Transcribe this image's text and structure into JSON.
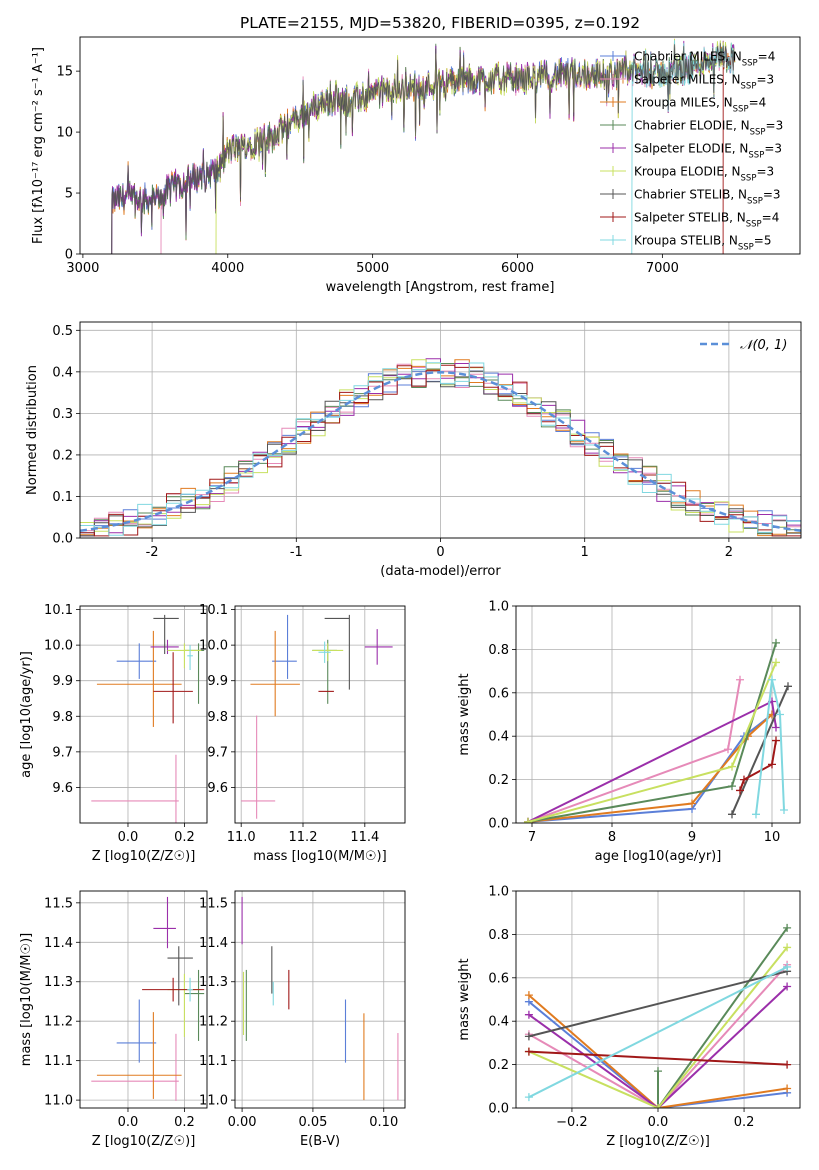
{
  "title": "PLATE=2155, MJD=53820, FIBERID=0395, z=0.192",
  "colors": {
    "Chabrier MILES": "#5b7fd8",
    "Salpeter MILES": "#e68ab8",
    "Kroupa MILES": "#e07b20",
    "Chabrier ELODIE": "#5a8a5a",
    "Salpeter ELODIE": "#9b2faa",
    "Kroupa ELODIE": "#c8e060",
    "Chabrier STELIB": "#555555",
    "Salpeter STELIB": "#a01818",
    "Kroupa STELIB": "#80d8e0",
    "gaussian": "#5b8fd8"
  },
  "chart_data": [
    {
      "type": "line",
      "title": "PLATE=2155, MJD=53820, FIBERID=0395, z=0.192",
      "xlabel": "wavelength [Angstrom, rest frame]",
      "ylabel": "Flux [fλ10⁻¹⁷ erg cm⁻² s⁻¹ A⁻¹]",
      "xlim": [
        2980,
        7950
      ],
      "ylim": [
        0,
        17.8
      ],
      "xticks": [
        3000,
        4000,
        5000,
        6000,
        7000
      ],
      "yticks": [
        0,
        5,
        10,
        15
      ],
      "grid": false,
      "legend_position": "right",
      "legend": [
        "Chabrier MILES, N_SSP=4",
        "Salpeter MILES, N_SSP=3",
        "Kroupa MILES, N_SSP=4",
        "Chabrier ELODIE, N_SSP=3",
        "Salpeter ELODIE, N_SSP=3",
        "Kroupa ELODIE, N_SSP=3",
        "Chabrier STELIB, N_SSP=3",
        "Salpeter STELIB, N_SSP=4",
        "Kroupa STELIB, N_SSP=5"
      ],
      "spectrum_envelope": {
        "x": [
          3200,
          3300,
          3400,
          3500,
          3600,
          3700,
          3800,
          3900,
          3950,
          4000,
          4100,
          4200,
          4300,
          4400,
          4500,
          4600,
          4700,
          4800,
          4900,
          5000,
          5200,
          5400,
          5600,
          5800,
          6000,
          6200,
          6400,
          6600,
          6800,
          7000,
          7200,
          7400,
          7500
        ],
        "y": [
          4.4,
          4.6,
          4.5,
          4.4,
          5.4,
          5.9,
          6.4,
          6.7,
          7.0,
          8.5,
          8.8,
          9.2,
          9.6,
          10.5,
          11.3,
          12.1,
          12.6,
          12.5,
          12.7,
          13.1,
          13.6,
          13.9,
          14.2,
          14.4,
          14.3,
          14.6,
          14.8,
          14.7,
          15.0,
          14.8,
          15.3,
          16.4,
          16.0
        ]
      },
      "series_start_x": {
        "Chabrier STELIB": 3200,
        "Salpeter MILES": 3540,
        "Kroupa ELODIE": 3920,
        "Kroupa STELIB": 6790,
        "Salpeter STELIB": 7420
      }
    },
    {
      "type": "line",
      "xlabel": "(data-model)/error",
      "ylabel": "Normed distribution",
      "xlim": [
        -2.5,
        2.5
      ],
      "ylim": [
        0,
        0.52
      ],
      "xticks": [
        -2,
        -1,
        0,
        1,
        2
      ],
      "yticks": [
        0.0,
        0.1,
        0.2,
        0.3,
        0.4,
        0.5
      ],
      "grid": true,
      "legend": [
        "𝒩(0, 1)"
      ],
      "legend_position": "top-right",
      "histogram_bin_width": 0.1,
      "gaussian": {
        "mean": 0,
        "sigma": 1
      }
    },
    {
      "type": "scatter",
      "xlabel": "Z [log10(Z/Z☉)]",
      "ylabel": "age [log10(age/yr)]",
      "xlim": [
        -0.17,
        0.28
      ],
      "ylim": [
        9.5,
        10.11
      ],
      "xticks": [
        "0.0",
        "0.2"
      ],
      "yticks": [
        "9.6",
        "9.7",
        "9.8",
        "9.9",
        "10.0",
        "10.1"
      ],
      "grid": true,
      "points": [
        {
          "series": "Chabrier MILES",
          "x": 0.04,
          "xerr": [
            0.08,
            0.06
          ],
          "y": 9.955,
          "yerr": [
            0.05,
            0.05
          ]
        },
        {
          "series": "Salpeter MILES",
          "x": 0.17,
          "xerr": [
            0.3,
            0.01
          ],
          "y": 9.562,
          "yerr": [
            0.3,
            0.13
          ]
        },
        {
          "series": "Kroupa MILES",
          "x": 0.09,
          "xerr": [
            0.2,
            0.1
          ],
          "y": 9.89,
          "yerr": [
            0.12,
            0.15
          ]
        },
        {
          "series": "Chabrier ELODIE",
          "x": 0.25,
          "xerr": [
            0.05,
            0.02
          ],
          "y": 9.985,
          "yerr": [
            0.15,
            0.02
          ]
        },
        {
          "series": "Salpeter ELODIE",
          "x": 0.14,
          "xerr": [
            0.06,
            0.04
          ],
          "y": 9.995,
          "yerr": [
            0.02,
            0.02
          ]
        },
        {
          "series": "Kroupa ELODIE",
          "x": 0.2,
          "xerr": [
            0.06,
            0.06
          ],
          "y": 9.985,
          "yerr": [
            0.05,
            0.02
          ]
        },
        {
          "series": "Chabrier STELIB",
          "x": 0.13,
          "xerr": [
            0.04,
            0.05
          ],
          "y": 10.075,
          "yerr": [
            0.1,
            0.01
          ]
        },
        {
          "series": "Salpeter STELIB",
          "x": 0.16,
          "xerr": [
            0.07,
            0.07
          ],
          "y": 9.87,
          "yerr": [
            0.09,
            0.11
          ]
        },
        {
          "series": "Kroupa STELIB",
          "x": 0.22,
          "xerr": [
            0.01,
            0.01
          ],
          "y": 9.97,
          "yerr": [
            0.04,
            0.03
          ]
        }
      ]
    },
    {
      "type": "scatter",
      "xlabel": "mass [log10(M/M☉)]",
      "ylabel": "",
      "xlim": [
        10.98,
        11.53
      ],
      "ylim": [
        9.5,
        10.11
      ],
      "xticks": [
        "11.0",
        "11.2",
        "11.4"
      ],
      "yticks": [
        "9.6",
        "9.7",
        "9.8",
        "9.9",
        "10.0",
        "10.1"
      ],
      "grid": true,
      "points": [
        {
          "series": "Chabrier MILES",
          "x": 11.15,
          "xerr": [
            0.05,
            0.03
          ],
          "y": 9.955,
          "yerr": [
            0.05,
            0.13
          ]
        },
        {
          "series": "Salpeter MILES",
          "x": 11.05,
          "xerr": [
            0.05,
            0.06
          ],
          "y": 9.562,
          "yerr": [
            0.05,
            0.24
          ]
        },
        {
          "series": "Kroupa MILES",
          "x": 11.11,
          "xerr": [
            0.08,
            0.08
          ],
          "y": 9.89,
          "yerr": [
            0.09,
            0.15
          ]
        },
        {
          "series": "Chabrier ELODIE",
          "x": 11.28,
          "xerr": [
            0.05,
            0.03
          ],
          "y": 9.985,
          "yerr": [
            0.15,
            0.03
          ]
        },
        {
          "series": "Salpeter ELODIE",
          "x": 11.44,
          "xerr": [
            0.04,
            0.05
          ],
          "y": 9.995,
          "yerr": [
            0.05,
            0.05
          ]
        },
        {
          "series": "Kroupa ELODIE",
          "x": 11.28,
          "xerr": [
            0.05,
            0.05
          ],
          "y": 9.985,
          "yerr": [
            0.03,
            0.02
          ]
        },
        {
          "series": "Chabrier STELIB",
          "x": 11.35,
          "xerr": [
            0.08,
            0.0
          ],
          "y": 10.075,
          "yerr": [
            0.2,
            0.01
          ]
        },
        {
          "series": "Salpeter STELIB",
          "x": 11.28,
          "xerr": [
            0.03,
            0.02
          ],
          "y": 9.87,
          "yerr": [
            0.0,
            0.0
          ]
        },
        {
          "series": "Kroupa STELIB",
          "x": 11.27,
          "xerr": [
            0.02,
            0.02
          ],
          "y": 9.98,
          "yerr": [
            0.03,
            0.03
          ]
        }
      ]
    },
    {
      "type": "line",
      "xlabel": "age [log10(age/yr)]",
      "ylabel": "mass weight",
      "xlim": [
        6.8,
        10.35
      ],
      "ylim": [
        0,
        1.0
      ],
      "xticks": [
        "7",
        "8",
        "9",
        "10"
      ],
      "yticks": [
        "0.0",
        "0.2",
        "0.4",
        "0.6",
        "0.8",
        "1.0"
      ],
      "grid": true,
      "series": [
        {
          "series": "Chabrier MILES",
          "x": [
            6.95,
            9.0,
            9.65,
            10.0
          ],
          "y": [
            0.005,
            0.065,
            0.4,
            0.5
          ]
        },
        {
          "series": "Salpeter MILES",
          "x": [
            6.95,
            9.45,
            9.6
          ],
          "y": [
            0.005,
            0.34,
            0.66
          ]
        },
        {
          "series": "Kroupa MILES",
          "x": [
            6.95,
            9.0,
            9.7,
            10.0
          ],
          "y": [
            0.005,
            0.09,
            0.4,
            0.5
          ]
        },
        {
          "series": "Chabrier ELODIE",
          "x": [
            6.95,
            9.5,
            10.05
          ],
          "y": [
            0.005,
            0.17,
            0.83
          ]
        },
        {
          "series": "Salpeter ELODIE",
          "x": [
            6.95,
            10.0,
            10.05
          ],
          "y": [
            0.005,
            0.56,
            0.44
          ]
        },
        {
          "series": "Kroupa ELODIE",
          "x": [
            6.95,
            9.5,
            10.05
          ],
          "y": [
            0.005,
            0.26,
            0.74
          ]
        },
        {
          "series": "Chabrier STELIB",
          "x": [
            9.5,
            10.2
          ],
          "y": [
            0.04,
            0.63
          ]
        },
        {
          "series": "Salpeter STELIB",
          "x": [
            9.6,
            9.65,
            10.0,
            10.05
          ],
          "y": [
            0.15,
            0.2,
            0.27,
            0.38
          ]
        },
        {
          "series": "Kroupa STELIB",
          "x": [
            9.8,
            10.0,
            10.1,
            10.15
          ],
          "y": [
            0.04,
            0.66,
            0.5,
            0.06
          ]
        }
      ]
    },
    {
      "type": "scatter",
      "xlabel": "Z [log10(Z/Z☉)]",
      "ylabel": "mass [log10(M/M☉)]",
      "xlim": [
        -0.17,
        0.28
      ],
      "ylim": [
        10.98,
        11.53
      ],
      "xticks": [
        "0.0",
        "0.2"
      ],
      "yticks": [
        "11.0",
        "11.1",
        "11.2",
        "11.3",
        "11.4",
        "11.5"
      ],
      "grid": true,
      "points": [
        {
          "series": "Chabrier MILES",
          "x": 0.04,
          "xerr": [
            0.08,
            0.06
          ],
          "y": 11.145,
          "yerr": [
            0.05,
            0.11
          ]
        },
        {
          "series": "Salpeter MILES",
          "x": 0.17,
          "xerr": [
            0.3,
            0.01
          ],
          "y": 11.048,
          "yerr": [
            0.05,
            0.12
          ]
        },
        {
          "series": "Kroupa MILES",
          "x": 0.09,
          "xerr": [
            0.2,
            0.1
          ],
          "y": 11.063,
          "yerr": [
            0.06,
            0.16
          ]
        },
        {
          "series": "Chabrier ELODIE",
          "x": 0.25,
          "xerr": [
            0.05,
            0.02
          ],
          "y": 11.27,
          "yerr": [
            0.12,
            0.06
          ]
        },
        {
          "series": "Salpeter ELODIE",
          "x": 0.14,
          "xerr": [
            0.05,
            0.03
          ],
          "y": 11.435,
          "yerr": [
            0.05,
            0.08
          ]
        },
        {
          "series": "Kroupa ELODIE",
          "x": 0.2,
          "xerr": [
            0.06,
            0.06
          ],
          "y": 11.28,
          "yerr": [
            0.12,
            0.04
          ]
        },
        {
          "series": "Chabrier STELIB",
          "x": 0.18,
          "xerr": [
            0.04,
            0.05
          ],
          "y": 11.36,
          "yerr": [
            0.12,
            0.03
          ]
        },
        {
          "series": "Salpeter STELIB",
          "x": 0.16,
          "xerr": [
            0.11,
            0.11
          ],
          "y": 11.28,
          "yerr": [
            0.03,
            0.03
          ]
        },
        {
          "series": "Kroupa STELIB",
          "x": 0.22,
          "xerr": [
            0.01,
            0.01
          ],
          "y": 11.28,
          "yerr": [
            0.03,
            0.03
          ]
        }
      ]
    },
    {
      "type": "scatter",
      "xlabel": "E(B-V)",
      "ylabel": "",
      "xlim": [
        -0.005,
        0.115
      ],
      "ylim": [
        10.98,
        11.53
      ],
      "xticks": [
        "0.00",
        "0.05",
        "0.10"
      ],
      "yticks": [
        "11.0",
        "11.1",
        "11.2",
        "11.3",
        "11.4",
        "11.5"
      ],
      "grid": true,
      "points": [
        {
          "series": "Chabrier MILES",
          "x": 0.073,
          "y": 11.175,
          "yerr": [
            0.08,
            0.08
          ]
        },
        {
          "series": "Salpeter MILES",
          "x": 0.11,
          "y": 11.07,
          "yerr": [
            0.07,
            0.1
          ]
        },
        {
          "series": "Kroupa MILES",
          "x": 0.086,
          "y": 11.11,
          "yerr": [
            0.11,
            0.11
          ]
        },
        {
          "series": "Chabrier ELODIE",
          "x": 0.003,
          "y": 11.24,
          "yerr": [
            0.09,
            0.09
          ]
        },
        {
          "series": "Salpeter ELODIE",
          "x": 0.0,
          "y": 11.455,
          "yerr": [
            0.06,
            0.06
          ]
        },
        {
          "series": "Kroupa ELODIE",
          "x": 0.001,
          "y": 11.245,
          "yerr": [
            0.08,
            0.08
          ]
        },
        {
          "series": "Chabrier STELIB",
          "x": 0.021,
          "y": 11.33,
          "yerr": [
            0.06,
            0.06
          ]
        },
        {
          "series": "Salpeter STELIB",
          "x": 0.033,
          "y": 11.28,
          "yerr": [
            0.05,
            0.05
          ]
        },
        {
          "series": "Kroupa STELIB",
          "x": 0.022,
          "y": 11.27,
          "yerr": [
            0.03,
            0.03
          ]
        }
      ]
    },
    {
      "type": "line",
      "xlabel": "Z [log10(Z/Z☉)]",
      "ylabel": "mass weight",
      "xlim": [
        -0.33,
        0.33
      ],
      "ylim": [
        0,
        1.0
      ],
      "xticks": [
        "−0.2",
        "0.0",
        "0.2"
      ],
      "yticks": [
        "0.0",
        "0.2",
        "0.4",
        "0.6",
        "0.8",
        "1.0"
      ],
      "grid": true,
      "series": [
        {
          "series": "Chabrier MILES",
          "x": [
            -0.3,
            0.0,
            0.3
          ],
          "y": [
            0.49,
            0.0,
            0.07
          ]
        },
        {
          "series": "Salpeter MILES",
          "x": [
            -0.3,
            0.0,
            0.3
          ],
          "y": [
            0.34,
            0.0,
            0.66
          ]
        },
        {
          "series": "Kroupa MILES",
          "x": [
            -0.3,
            0.0,
            0.3
          ],
          "y": [
            0.52,
            0.0,
            0.09
          ]
        },
        {
          "series": "Chabrier ELODIE",
          "x": [
            0.0,
            0.0,
            0.3
          ],
          "y": [
            0.17,
            0.0,
            0.83
          ]
        },
        {
          "series": "Salpeter ELODIE",
          "x": [
            -0.3,
            0.0,
            0.3
          ],
          "y": [
            0.43,
            0.0,
            0.56
          ]
        },
        {
          "series": "Kroupa ELODIE",
          "x": [
            -0.3,
            0.0,
            0.3
          ],
          "y": [
            0.26,
            0.0,
            0.74
          ]
        },
        {
          "series": "Chabrier STELIB",
          "x": [
            -0.3,
            0.3
          ],
          "y": [
            0.33,
            0.63
          ]
        },
        {
          "series": "Salpeter STELIB",
          "x": [
            -0.3,
            0.3
          ],
          "y": [
            0.26,
            0.2
          ]
        },
        {
          "series": "Kroupa STELIB",
          "x": [
            -0.3,
            0.3
          ],
          "y": [
            0.05,
            0.65
          ]
        }
      ]
    }
  ]
}
